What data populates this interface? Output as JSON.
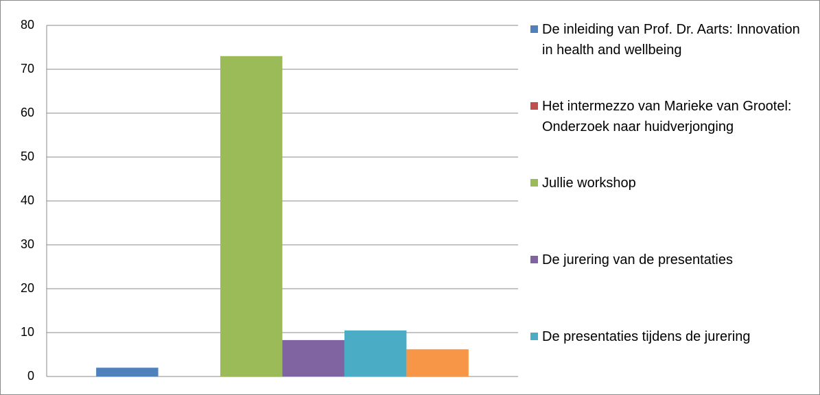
{
  "chart_data": {
    "type": "bar",
    "categories": [
      null
    ],
    "series": [
      {
        "name": "De inleiding van Prof. Dr. Aarts: Innovation in health and wellbeing",
        "color": "#4f81bd",
        "values": [
          2
        ]
      },
      {
        "name": "Het intermezzo van Marieke van Grootel: Onderzoek naar huidverjonging",
        "color": "#c0504d",
        "values": [
          0
        ]
      },
      {
        "name": "Jullie workshop",
        "color": "#9bbb59",
        "values": [
          73
        ]
      },
      {
        "name": "De jurering van de presentaties",
        "color": "#8064a2",
        "values": [
          8.3
        ]
      },
      {
        "name": "De presentaties tijdens de jurering",
        "color": "#4bacc6",
        "values": [
          10.5
        ]
      },
      {
        "color": "#f79646",
        "values": [
          6.2
        ]
      }
    ],
    "ylim": [
      0,
      80
    ],
    "yticks": [
      0,
      10,
      20,
      30,
      40,
      50,
      60,
      70,
      80
    ],
    "grid": true,
    "legend": "right"
  }
}
